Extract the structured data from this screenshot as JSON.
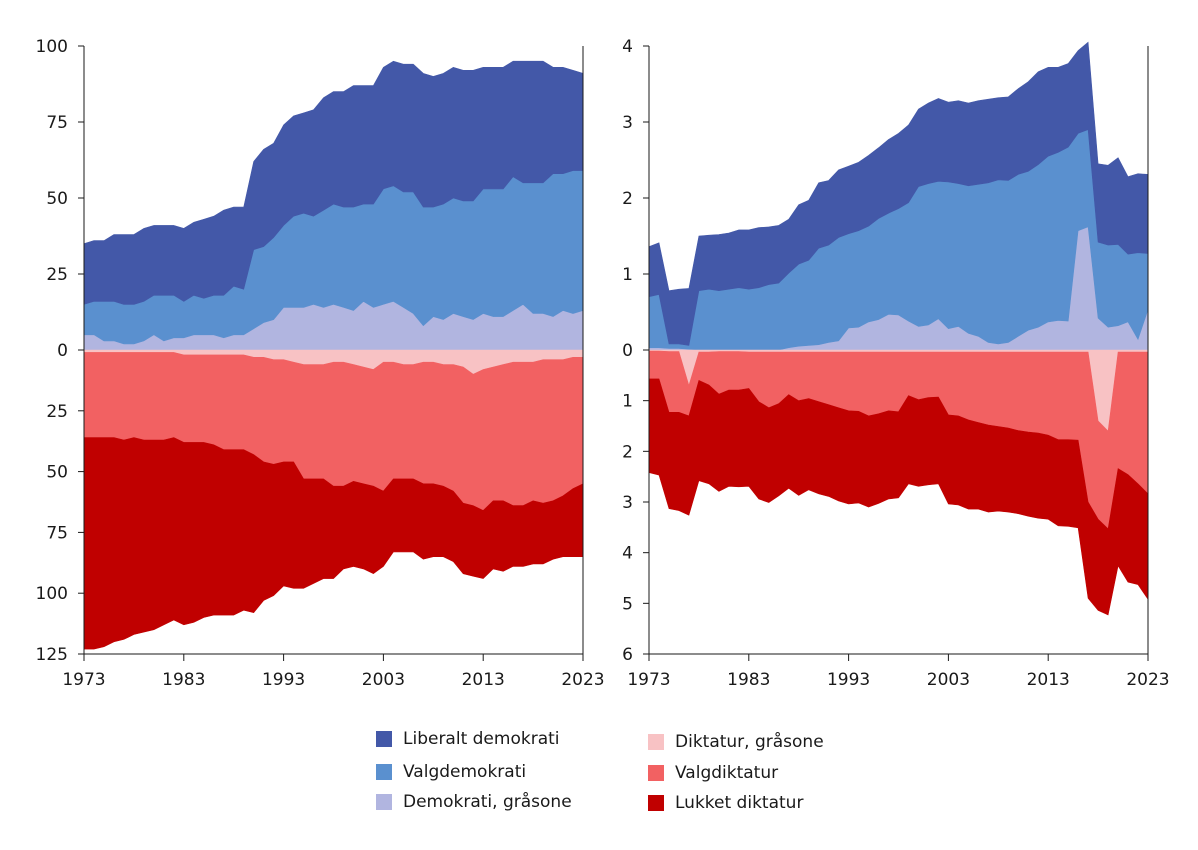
{
  "chart_data": [
    {
      "type": "area",
      "x": [
        1973,
        1974,
        1975,
        1976,
        1977,
        1978,
        1979,
        1980,
        1981,
        1982,
        1983,
        1984,
        1985,
        1986,
        1987,
        1988,
        1989,
        1990,
        1991,
        1992,
        1993,
        1994,
        1995,
        1996,
        1997,
        1998,
        1999,
        2000,
        2001,
        2002,
        2003,
        2004,
        2005,
        2006,
        2007,
        2008,
        2009,
        2010,
        2011,
        2012,
        2013,
        2014,
        2015,
        2016,
        2017,
        2018,
        2019,
        2020,
        2021,
        2022,
        2023
      ],
      "ylim_top": [
        0,
        100
      ],
      "ylim_bottom": [
        0,
        125
      ],
      "top_ticks": [
        "0",
        "25",
        "50",
        "75",
        "100"
      ],
      "bottom_ticks": [
        "25",
        "50",
        "75",
        "100",
        "125"
      ],
      "xticks": [
        "1973",
        "1983",
        "1993",
        "2003",
        "2013",
        "2023"
      ],
      "series": [
        {
          "name": "Demokrati, gråsone",
          "side": "top",
          "color": "#b1b5e0",
          "values": [
            5,
            5,
            3,
            3,
            2,
            2,
            3,
            5,
            3,
            4,
            4,
            5,
            5,
            5,
            4,
            5,
            5,
            7,
            9,
            10,
            14,
            14,
            14,
            15,
            14,
            15,
            14,
            13,
            16,
            14,
            15,
            16,
            14,
            12,
            8,
            11,
            10,
            12,
            11,
            10,
            12,
            11,
            11,
            13,
            15,
            12,
            12,
            11,
            13,
            12,
            13
          ]
        },
        {
          "name": "Valgdemokrati",
          "side": "top",
          "color": "#5a90cf",
          "values": [
            10,
            11,
            13,
            13,
            13,
            13,
            13,
            13,
            15,
            14,
            12,
            13,
            12,
            13,
            14,
            16,
            15,
            26,
            25,
            27,
            27,
            30,
            31,
            29,
            32,
            33,
            33,
            34,
            32,
            34,
            38,
            38,
            38,
            40,
            39,
            36,
            38,
            38,
            38,
            39,
            41,
            42,
            42,
            44,
            40,
            43,
            43,
            47,
            45,
            47,
            46
          ]
        },
        {
          "name": "Liberalt demokrati",
          "side": "top",
          "color": "#4358a8",
          "values": [
            20,
            20,
            20,
            22,
            23,
            23,
            24,
            23,
            23,
            23,
            24,
            24,
            26,
            26,
            28,
            26,
            27,
            29,
            32,
            31,
            33,
            33,
            33,
            35,
            37,
            37,
            38,
            40,
            39,
            39,
            40,
            41,
            42,
            42,
            44,
            43,
            43,
            43,
            43,
            43,
            40,
            40,
            40,
            38,
            40,
            40,
            40,
            35,
            35,
            33,
            32
          ]
        },
        {
          "name": "Diktatur, gråsone",
          "side": "bottom",
          "color": "#f8c2c4",
          "values": [
            1,
            1,
            1,
            1,
            1,
            1,
            1,
            1,
            1,
            1,
            2,
            2,
            2,
            2,
            2,
            2,
            2,
            3,
            3,
            4,
            4,
            5,
            6,
            6,
            6,
            5,
            5,
            6,
            7,
            8,
            5,
            5,
            6,
            6,
            5,
            5,
            6,
            6,
            7,
            10,
            8,
            7,
            6,
            5,
            5,
            5,
            4,
            4,
            4,
            3,
            3
          ]
        },
        {
          "name": "Valgdiktatur",
          "side": "bottom",
          "color": "#f26162",
          "values": [
            35,
            35,
            35,
            35,
            36,
            35,
            36,
            36,
            36,
            35,
            36,
            36,
            36,
            37,
            39,
            39,
            39,
            40,
            43,
            43,
            42,
            41,
            47,
            47,
            47,
            51,
            51,
            48,
            48,
            48,
            53,
            48,
            47,
            47,
            50,
            50,
            50,
            52,
            56,
            54,
            58,
            55,
            56,
            59,
            59,
            57,
            59,
            58,
            56,
            54,
            52
          ]
        },
        {
          "name": "Lukket diktatur",
          "side": "bottom",
          "color": "#c00000",
          "values": [
            87,
            87,
            86,
            84,
            82,
            81,
            79,
            78,
            76,
            75,
            75,
            74,
            72,
            70,
            68,
            68,
            66,
            65,
            57,
            54,
            51,
            52,
            45,
            43,
            41,
            38,
            34,
            35,
            35,
            36,
            31,
            30,
            30,
            30,
            31,
            30,
            29,
            29,
            29,
            29,
            28,
            28,
            29,
            25,
            25,
            26,
            25,
            24,
            25,
            28,
            30
          ]
        }
      ]
    },
    {
      "type": "area",
      "x": [
        1973,
        1974,
        1975,
        1976,
        1977,
        1978,
        1979,
        1980,
        1981,
        1982,
        1983,
        1984,
        1985,
        1986,
        1987,
        1988,
        1989,
        1990,
        1991,
        1992,
        1993,
        1994,
        1995,
        1996,
        1997,
        1998,
        1999,
        2000,
        2001,
        2002,
        2003,
        2004,
        2005,
        2006,
        2007,
        2008,
        2009,
        2010,
        2011,
        2012,
        2013,
        2014,
        2015,
        2016,
        2017,
        2018,
        2019,
        2020,
        2021,
        2022,
        2023
      ],
      "ylim_top": [
        0,
        4
      ],
      "ylim_bottom": [
        0,
        6
      ],
      "top_ticks": [
        "0",
        "1",
        "2",
        "3",
        "4"
      ],
      "bottom_ticks": [
        "1",
        "2",
        "3",
        "4",
        "5",
        "6"
      ],
      "xticks": [
        "1973",
        "1983",
        "1993",
        "2003",
        "2013",
        "2023"
      ],
      "series": [
        {
          "name": "Demokrati, gråsone",
          "side": "top",
          "color": "#b1b5e0",
          "values": [
            0.03,
            0.03,
            0.02,
            0.02,
            0.01,
            0.0,
            0.0,
            0.0,
            0.0,
            0.0,
            0.0,
            0.0,
            0.0,
            0.0,
            0.03,
            0.05,
            0.06,
            0.07,
            0.1,
            0.12,
            0.29,
            0.3,
            0.37,
            0.4,
            0.47,
            0.46,
            0.38,
            0.31,
            0.33,
            0.41,
            0.28,
            0.31,
            0.22,
            0.18,
            0.1,
            0.08,
            0.1,
            0.18,
            0.26,
            0.3,
            0.37,
            0.39,
            0.38,
            1.57,
            1.62,
            0.42,
            0.3,
            0.32,
            0.37,
            0.14,
            0.53
          ]
        },
        {
          "name": "Valgdemokrati",
          "side": "top",
          "color": "#5a90cf",
          "values": [
            0.67,
            0.7,
            0.06,
            0.06,
            0.05,
            0.78,
            0.8,
            0.78,
            0.8,
            0.82,
            0.8,
            0.82,
            0.86,
            0.88,
            0.98,
            1.08,
            1.12,
            1.27,
            1.28,
            1.36,
            1.24,
            1.27,
            1.26,
            1.33,
            1.33,
            1.4,
            1.56,
            1.84,
            1.86,
            1.81,
            1.93,
            1.88,
            1.94,
            2.0,
            2.1,
            2.16,
            2.13,
            2.13,
            2.09,
            2.14,
            2.18,
            2.21,
            2.29,
            1.28,
            1.28,
            1.0,
            1.08,
            1.07,
            0.89,
            1.14,
            0.74
          ]
        },
        {
          "name": "Liberalt demokrati",
          "side": "top",
          "color": "#4358a8",
          "values": [
            0.66,
            0.68,
            0.7,
            0.72,
            0.75,
            0.72,
            0.71,
            0.74,
            0.74,
            0.76,
            0.78,
            0.79,
            0.76,
            0.76,
            0.71,
            0.78,
            0.79,
            0.86,
            0.85,
            0.89,
            0.89,
            0.9,
            0.93,
            0.93,
            0.97,
            0.99,
            1.02,
            1.02,
            1.06,
            1.09,
            1.05,
            1.09,
            1.09,
            1.1,
            1.1,
            1.08,
            1.1,
            1.13,
            1.18,
            1.22,
            1.17,
            1.12,
            1.1,
            1.09,
            1.15,
            1.03,
            1.05,
            1.14,
            1.02,
            1.04,
            1.04
          ]
        },
        {
          "name": "Diktatur, gråsone",
          "side": "bottom",
          "color": "#f8c2c4",
          "values": [
            0.02,
            0.02,
            0.03,
            0.03,
            0.7,
            0.04,
            0.04,
            0.03,
            0.03,
            0.03,
            0.04,
            0.04,
            0.04,
            0.04,
            0.04,
            0.04,
            0.04,
            0.04,
            0.04,
            0.04,
            0.04,
            0.04,
            0.04,
            0.04,
            0.04,
            0.04,
            0.04,
            0.04,
            0.04,
            0.04,
            0.04,
            0.04,
            0.04,
            0.04,
            0.04,
            0.04,
            0.04,
            0.04,
            0.04,
            0.04,
            0.04,
            0.04,
            0.04,
            0.04,
            0.04,
            1.4,
            1.6,
            0.04,
            0.04,
            0.04,
            0.04
          ]
        },
        {
          "name": "Valgdiktatur",
          "side": "bottom",
          "color": "#f26162",
          "values": [
            0.55,
            0.55,
            1.2,
            1.2,
            0.6,
            0.56,
            0.65,
            0.84,
            0.76,
            0.76,
            0.72,
            0.98,
            1.1,
            1.02,
            0.84,
            0.96,
            0.92,
            0.98,
            1.04,
            1.1,
            1.16,
            1.17,
            1.26,
            1.22,
            1.16,
            1.18,
            0.86,
            0.94,
            0.9,
            0.89,
            1.24,
            1.26,
            1.34,
            1.39,
            1.44,
            1.47,
            1.5,
            1.55,
            1.58,
            1.6,
            1.64,
            1.73,
            1.73,
            1.74,
            2.96,
            1.94,
            1.93,
            2.3,
            2.42,
            2.6,
            2.8
          ]
        },
        {
          "name": "Lukket diktatur",
          "side": "bottom",
          "color": "#c00000",
          "values": [
            1.85,
            1.9,
            1.9,
            1.94,
            1.96,
            1.98,
            1.95,
            1.92,
            1.9,
            1.91,
            1.93,
            1.92,
            1.87,
            1.82,
            1.85,
            1.87,
            1.8,
            1.82,
            1.81,
            1.84,
            1.84,
            1.81,
            1.8,
            1.77,
            1.74,
            1.7,
            1.74,
            1.71,
            1.72,
            1.71,
            1.76,
            1.76,
            1.76,
            1.71,
            1.72,
            1.67,
            1.66,
            1.64,
            1.66,
            1.68,
            1.66,
            1.7,
            1.71,
            1.73,
            1.9,
            1.8,
            1.7,
            1.92,
            2.12,
            1.99,
            2.08
          ]
        }
      ]
    }
  ],
  "legend": {
    "items": [
      {
        "label": "Liberalt demokrati",
        "color": "#4358a8"
      },
      {
        "label": "Valgdemokrati",
        "color": "#5a90cf"
      },
      {
        "label": "Demokrati, gråsone",
        "color": "#b1b5e0"
      },
      {
        "label": "Diktatur, gråsone",
        "color": "#f8c2c4"
      },
      {
        "label": "Valgdiktatur",
        "color": "#f26162"
      },
      {
        "label": "Lukket diktatur",
        "color": "#c00000"
      }
    ]
  }
}
